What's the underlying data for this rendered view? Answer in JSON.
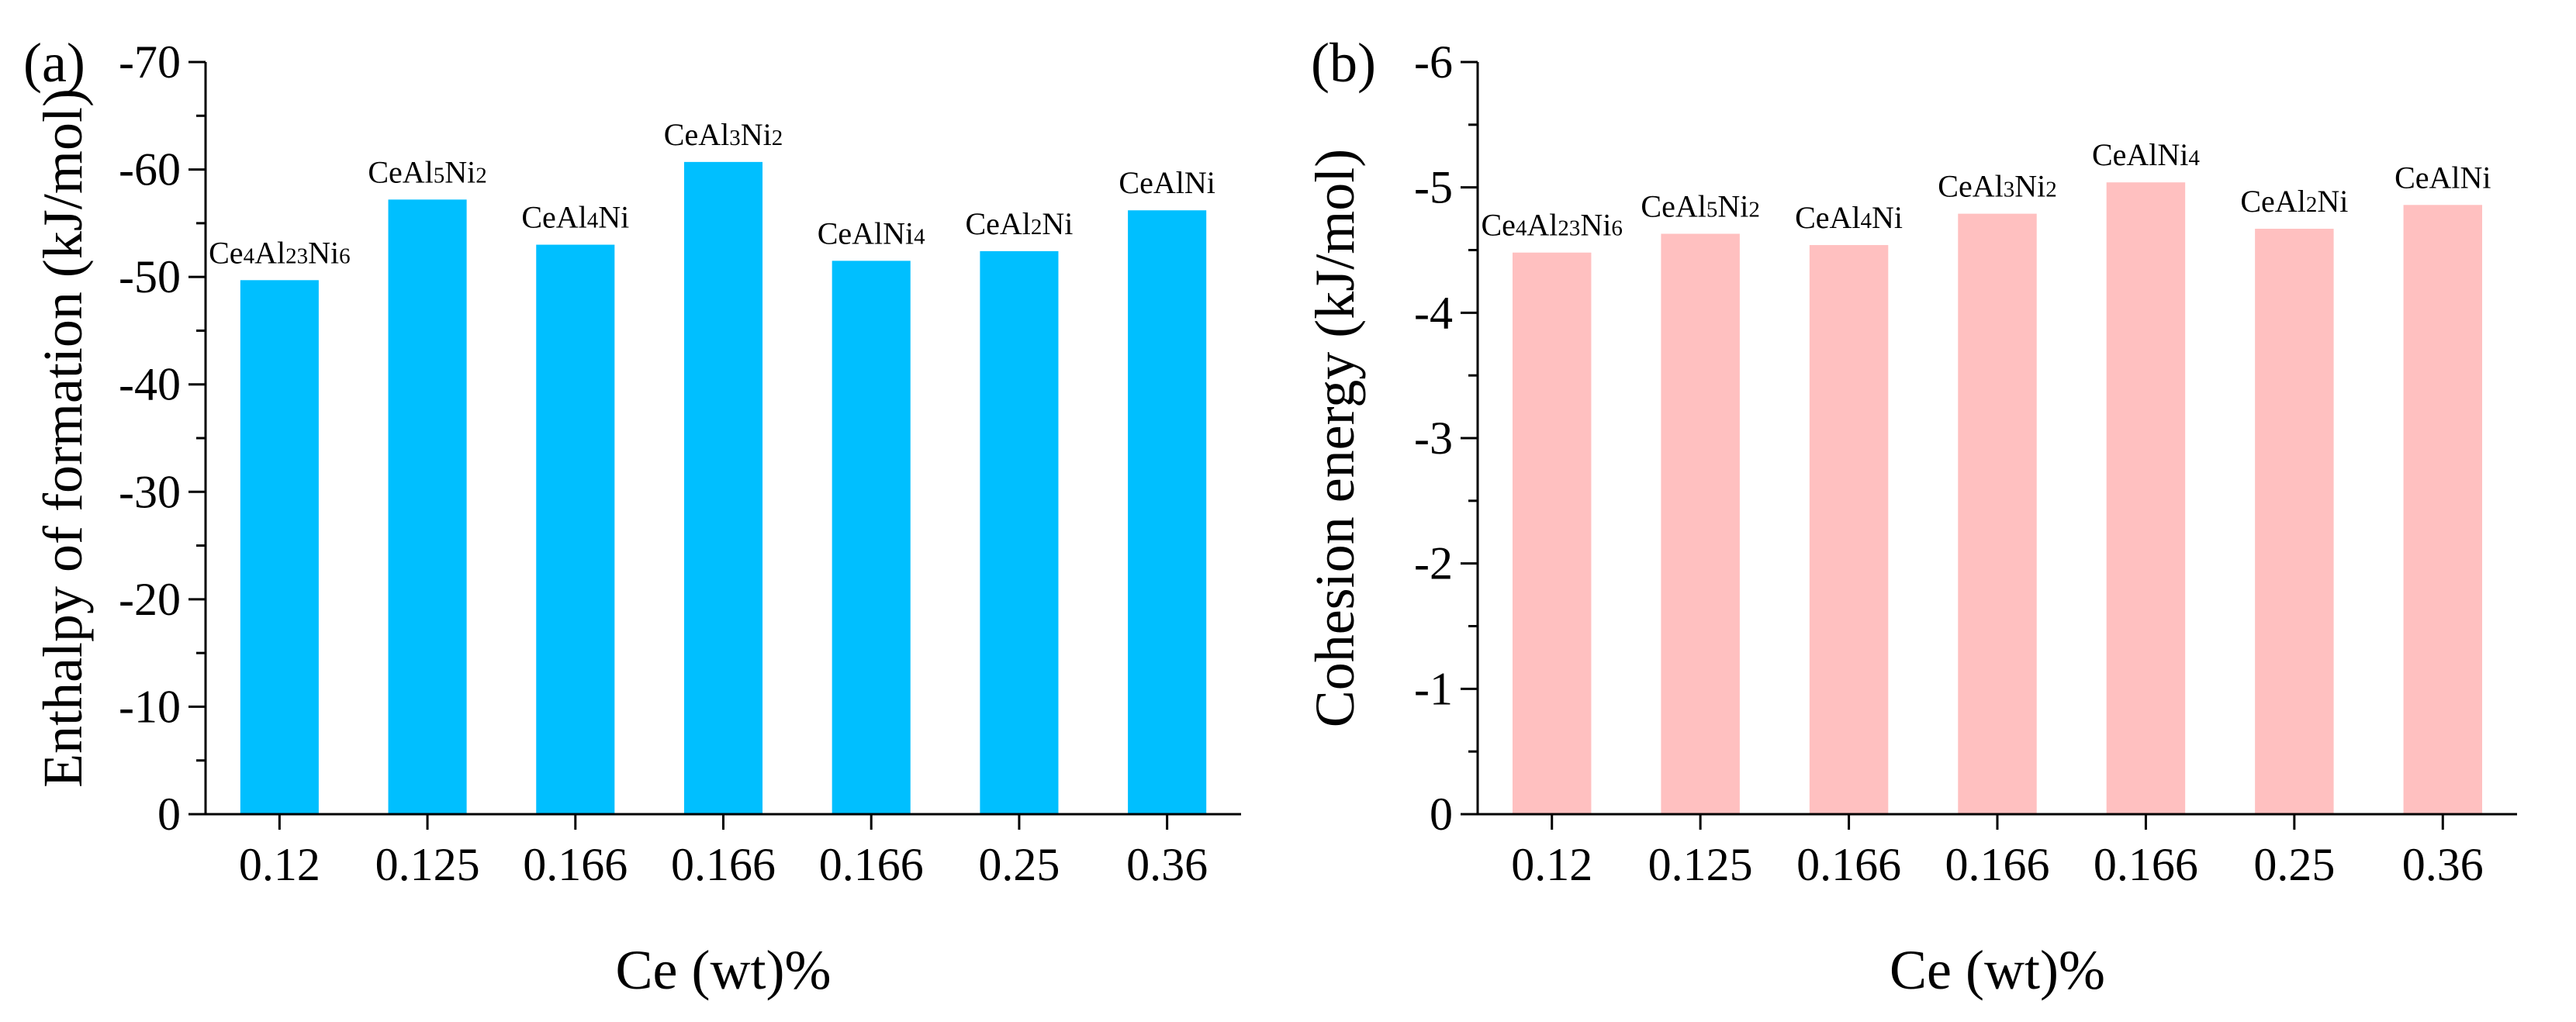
{
  "chart_data": [
    {
      "type": "bar",
      "panel_label": "(a)",
      "xlabel": "Ce (wt)%",
      "ylabel": "Enthalpy of formation (kJ/mol)",
      "categories": [
        "0.12",
        "0.125",
        "0.166",
        "0.166",
        "0.166",
        "0.25",
        "0.36"
      ],
      "bar_labels": [
        {
          "main": "Ce",
          "parts": [
            [
              "Ce",
              ""
            ],
            [
              "4",
              "sub"
            ],
            [
              "Al",
              ""
            ],
            [
              "23",
              "sub"
            ],
            [
              "Ni",
              ""
            ],
            [
              "6",
              "sub"
            ]
          ]
        },
        {
          "parts": [
            [
              "CeAl",
              ""
            ],
            [
              "5",
              "sub"
            ],
            [
              "Ni",
              ""
            ],
            [
              "2",
              "sub"
            ]
          ]
        },
        {
          "parts": [
            [
              "CeAl",
              ""
            ],
            [
              "4",
              "sub"
            ],
            [
              "Ni",
              ""
            ]
          ]
        },
        {
          "parts": [
            [
              "CeAl",
              ""
            ],
            [
              "3",
              "sub"
            ],
            [
              "Ni",
              ""
            ],
            [
              "2",
              "sub"
            ]
          ]
        },
        {
          "parts": [
            [
              "CeAlNi",
              ""
            ],
            [
              "4",
              "sub"
            ]
          ]
        },
        {
          "parts": [
            [
              "CeAl",
              ""
            ],
            [
              "2",
              "sub"
            ],
            [
              "Ni",
              ""
            ]
          ]
        },
        {
          "parts": [
            [
              "CeAlNi",
              ""
            ]
          ]
        }
      ],
      "values": [
        -49.7,
        -57.2,
        -53.0,
        -60.7,
        -51.5,
        -52.4,
        -56.2
      ],
      "ylim": [
        0,
        -70
      ],
      "yticks": [
        0,
        -10,
        -20,
        -30,
        -40,
        -50,
        -60,
        -70
      ],
      "ytick_labels": [
        "0",
        "-10",
        "-20",
        "-30",
        "-40",
        "-50",
        "-60",
        "-70"
      ],
      "color": "#00BFFF"
    },
    {
      "type": "bar",
      "panel_label": "(b)",
      "xlabel": "Ce (wt)%",
      "ylabel": "Cohesion energy (kJ/mol)",
      "categories": [
        "0.12",
        "0.125",
        "0.166",
        "0.166",
        "0.166",
        "0.25",
        "0.36"
      ],
      "bar_labels": [
        {
          "parts": [
            [
              "Ce",
              ""
            ],
            [
              "4",
              "sub"
            ],
            [
              "Al",
              ""
            ],
            [
              "23",
              "sub"
            ],
            [
              "Ni",
              ""
            ],
            [
              "6",
              "sub"
            ]
          ]
        },
        {
          "parts": [
            [
              "CeAl",
              ""
            ],
            [
              "5",
              "sub"
            ],
            [
              "Ni",
              ""
            ],
            [
              "2",
              "sub"
            ]
          ]
        },
        {
          "parts": [
            [
              "CeAl",
              ""
            ],
            [
              "4",
              "sub"
            ],
            [
              "Ni",
              ""
            ]
          ]
        },
        {
          "parts": [
            [
              "CeAl",
              ""
            ],
            [
              "3",
              "sub"
            ],
            [
              "Ni",
              ""
            ],
            [
              "2",
              "sub"
            ]
          ]
        },
        {
          "parts": [
            [
              "CeAlNi",
              ""
            ],
            [
              "4",
              "sub"
            ]
          ]
        },
        {
          "parts": [
            [
              "CeAl",
              ""
            ],
            [
              "2",
              "sub"
            ],
            [
              "Ni",
              ""
            ]
          ]
        },
        {
          "parts": [
            [
              "CeAlNi",
              ""
            ]
          ]
        }
      ],
      "values": [
        -4.48,
        -4.63,
        -4.54,
        -4.79,
        -5.04,
        -4.67,
        -4.86
      ],
      "ylim": [
        0,
        -6
      ],
      "yticks": [
        0,
        -1,
        -2,
        -3,
        -4,
        -5,
        -6
      ],
      "ytick_labels": [
        "0",
        "-1",
        "-2",
        "-3",
        "-4",
        "-5",
        "-6"
      ],
      "color": "#FFC0C0"
    }
  ]
}
